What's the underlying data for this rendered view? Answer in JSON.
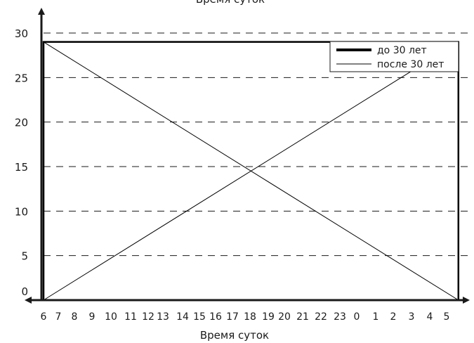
{
  "chart_data": {
    "type": "line",
    "title": "Время суток",
    "xlabel": "Время суток",
    "ylabel": "",
    "x_ticks": [
      "6",
      "7",
      "8",
      "9",
      "10",
      "11",
      "12",
      "13",
      "14",
      "15",
      "16",
      "17",
      "18",
      "19",
      "20",
      "21",
      "22",
      "23",
      "0",
      "1",
      "2",
      "3",
      "4",
      "5"
    ],
    "y_ticks": [
      "0",
      "5",
      "10",
      "15",
      "20",
      "25",
      "30"
    ],
    "ylim": [
      0,
      30
    ],
    "grid": "horizontal-dashed",
    "legend_position": "top-right",
    "series": [
      {
        "name": "до 30 лет",
        "style": "thick",
        "color": "#000000",
        "x": [
          "6",
          "6",
          "5.7",
          "5.7",
          "6"
        ],
        "values": [
          0,
          29,
          29,
          0,
          0
        ]
      },
      {
        "name": "после 30 лет",
        "style": "thin",
        "color": "#000000",
        "x": [
          "6",
          "5.7"
        ],
        "values": [
          29,
          0
        ]
      },
      {
        "name": "",
        "style": "thin",
        "color": "#000000",
        "x": [
          "6",
          "5.7"
        ],
        "values": [
          0,
          29
        ]
      }
    ]
  }
}
